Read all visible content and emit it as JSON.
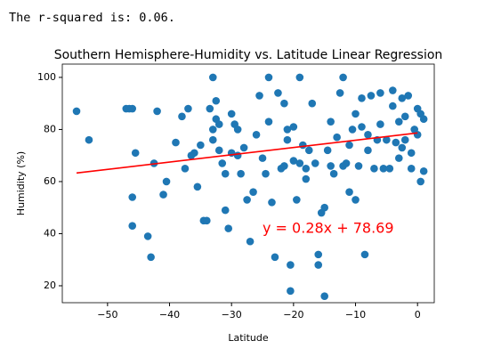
{
  "output_text": "The r-squared is: 0.06.",
  "chart_data": {
    "type": "scatter",
    "title": "Southern Hemisphere-Humidity vs. Latitude Linear Regression",
    "x_label": "Latitude",
    "y_label": "Humidity (%)",
    "annotation": "y = 0.28x + 78.69",
    "annotation_color": "#ff0000",
    "color": "#1f77b4",
    "x": [
      -55,
      -53,
      -47,
      -46.5,
      -46,
      -46,
      -46,
      -45.5,
      -43.5,
      -43,
      -42.5,
      -42,
      -41,
      -40.5,
      -39,
      -38,
      -37.5,
      -37,
      -36.5,
      -36,
      -35.5,
      -35,
      -34.5,
      -34,
      -33.5,
      -33,
      -33,
      -33,
      -32.5,
      -32.5,
      -32,
      -32,
      -31.5,
      -31,
      -31,
      -30.5,
      -30,
      -30,
      -29.5,
      -29,
      -28.5,
      -28,
      -27.5,
      -27,
      -26.5,
      -26,
      -25.5,
      -25,
      -24.5,
      -24,
      -23.5,
      -23,
      -22.5,
      -22,
      -21.5,
      -21,
      -21,
      -20.5,
      -20.5,
      -20,
      -20,
      -19.5,
      -19,
      -18.5,
      -18,
      -18,
      -17.5,
      -17,
      -16.5,
      -16,
      -16,
      -15.5,
      -15,
      -15,
      -14.5,
      -14,
      -14,
      -13.5,
      -13,
      -12.5,
      -12,
      -12,
      -11.5,
      -11,
      -11,
      -10.5,
      -10,
      -10,
      -9.5,
      -9,
      -8.5,
      -8,
      -8,
      -7.5,
      -7,
      -6.5,
      -6,
      -5.5,
      -5,
      -4.5,
      -4,
      -3.5,
      -3,
      -3,
      -2.5,
      -2,
      -2,
      -1.5,
      -1,
      -1,
      -0.5,
      0,
      0,
      0.5,
      0.5,
      1,
      1,
      -19,
      -21.5,
      -24,
      -29,
      -6,
      -9,
      -4,
      -2.5
    ],
    "values": [
      87,
      76,
      88,
      88,
      88,
      54,
      43,
      71,
      39,
      31,
      67,
      87,
      55,
      60,
      75,
      85,
      65,
      88,
      70,
      71,
      58,
      74,
      45,
      45,
      88,
      80,
      76,
      100,
      91,
      84,
      82,
      72,
      67,
      63,
      49,
      42,
      86,
      71,
      82,
      80,
      63,
      73,
      53,
      37,
      56,
      78,
      93,
      69,
      63,
      100,
      52,
      31,
      94,
      65,
      90,
      76,
      80,
      28,
      18,
      81,
      68,
      53,
      67,
      74,
      61,
      65,
      72,
      90,
      67,
      28,
      32,
      48,
      16,
      50,
      72,
      83,
      66,
      63,
      77,
      94,
      100,
      66,
      67,
      56,
      74,
      80,
      53,
      86,
      66,
      81,
      32,
      78,
      72,
      93,
      65,
      76,
      82,
      65,
      76,
      65,
      89,
      75,
      83,
      69,
      92,
      85,
      76,
      93,
      65,
      71,
      80,
      88,
      78,
      60,
      86,
      84,
      64,
      100,
      66,
      83,
      70,
      94,
      92,
      95,
      73
    ],
    "fit_line": {
      "x": [
        -55,
        0
      ],
      "values": [
        63.29,
        78.69
      ],
      "color": "#ff0000"
    },
    "xlim": [
      -57.3,
      2.7
    ],
    "ylim": [
      13.5,
      105.1
    ],
    "xticks": [
      {
        "value": -50,
        "label": "−50"
      },
      {
        "value": -40,
        "label": "−40"
      },
      {
        "value": -30,
        "label": "−30"
      },
      {
        "value": -20,
        "label": "−20"
      },
      {
        "value": -10,
        "label": "−10"
      },
      0
    ],
    "yticks": [
      20,
      40,
      60,
      80,
      100
    ],
    "grid": false
  }
}
